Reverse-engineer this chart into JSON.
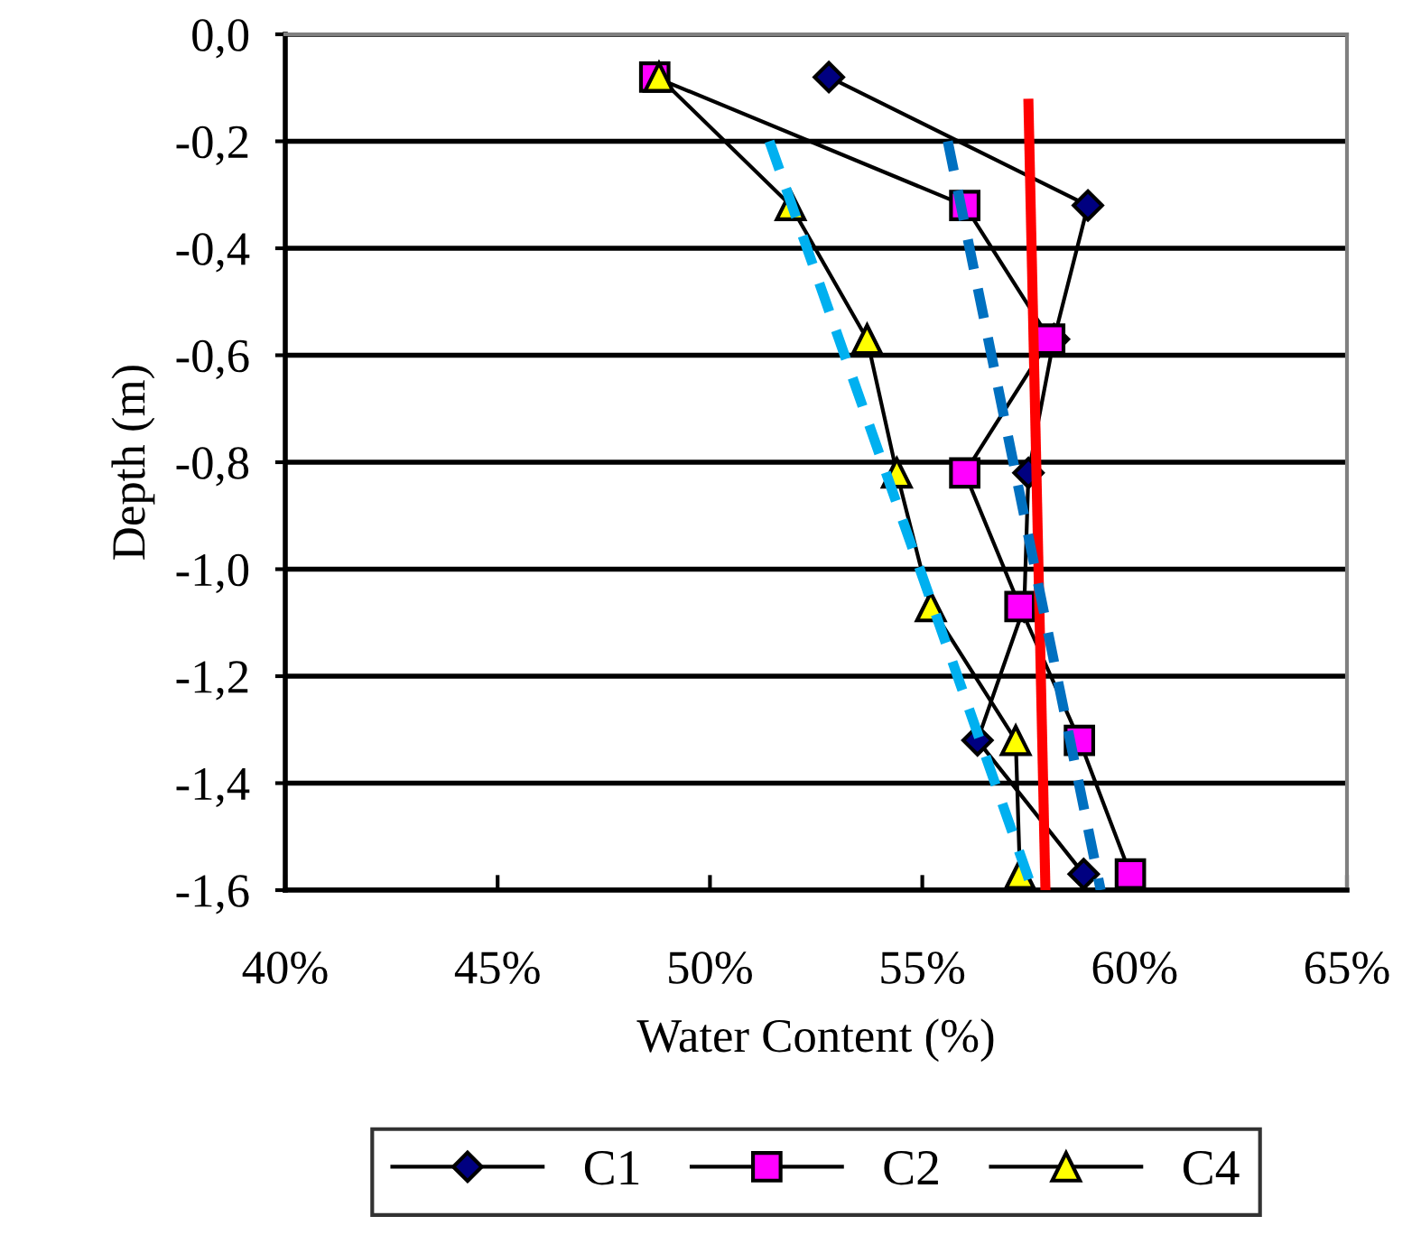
{
  "chart_data": {
    "type": "line",
    "xlabel": "Water Content (%)",
    "ylabel": "Depth (m)",
    "xlim": [
      40,
      65
    ],
    "xticks": [
      {
        "value": 40,
        "label": "40%"
      },
      {
        "value": 45,
        "label": "45%"
      },
      {
        "value": 50,
        "label": "50%"
      },
      {
        "value": 55,
        "label": "55%"
      },
      {
        "value": 60,
        "label": "60%"
      },
      {
        "value": 65,
        "label": "65%"
      }
    ],
    "ylim": [
      -1.6,
      0
    ],
    "yticks": [
      {
        "value": 0,
        "label": "0,0"
      },
      {
        "value": -0.2,
        "label": "-0,2"
      },
      {
        "value": -0.4,
        "label": "-0,4"
      },
      {
        "value": -0.6,
        "label": "-0,6"
      },
      {
        "value": -0.8,
        "label": "-0,8"
      },
      {
        "value": -1.0,
        "label": "-1,0"
      },
      {
        "value": -1.2,
        "label": "-1,2"
      },
      {
        "value": -1.4,
        "label": "-1,4"
      },
      {
        "value": -1.6,
        "label": "-1,6"
      }
    ],
    "grid": "y",
    "legend": "bottom",
    "series": [
      {
        "name": "C1",
        "color": "#000080",
        "marker": "diamond",
        "line_style": "solid",
        "x": [
          52.8,
          58.9,
          58.1,
          57.5,
          57.4,
          56.3,
          58.8
        ],
        "values": [
          -0.08,
          -0.32,
          -0.57,
          -0.82,
          -1.07,
          -1.32,
          -1.57
        ]
      },
      {
        "name": "C2",
        "color": "#ff00ff",
        "marker": "square",
        "line_style": "solid",
        "x": [
          48.7,
          56.0,
          58.0,
          56.0,
          57.3,
          58.7,
          59.9
        ],
        "values": [
          -0.08,
          -0.32,
          -0.57,
          -0.82,
          -1.07,
          -1.32,
          -1.57
        ]
      },
      {
        "name": "C4",
        "color": "#ffff00",
        "marker": "triangle",
        "line_style": "solid",
        "x": [
          48.8,
          51.9,
          53.7,
          54.4,
          55.2,
          57.2,
          57.3
        ],
        "values": [
          -0.08,
          -0.32,
          -0.57,
          -0.82,
          -1.07,
          -1.32,
          -1.57
        ]
      },
      {
        "color": "#ff0000",
        "marker": "none",
        "line_style": "solid",
        "x": [
          57.5,
          57.9
        ],
        "values": [
          -0.13,
          -1.6
        ]
      },
      {
        "color": "#0070c0",
        "marker": "none",
        "line_style": "dashed",
        "x": [
          55.6,
          59.2
        ],
        "values": [
          -0.2,
          -1.6
        ]
      },
      {
        "color": "#00b0f0",
        "marker": "none",
        "line_style": "dashed",
        "x": [
          51.4,
          57.6
        ],
        "values": [
          -0.2,
          -1.6
        ]
      }
    ]
  }
}
